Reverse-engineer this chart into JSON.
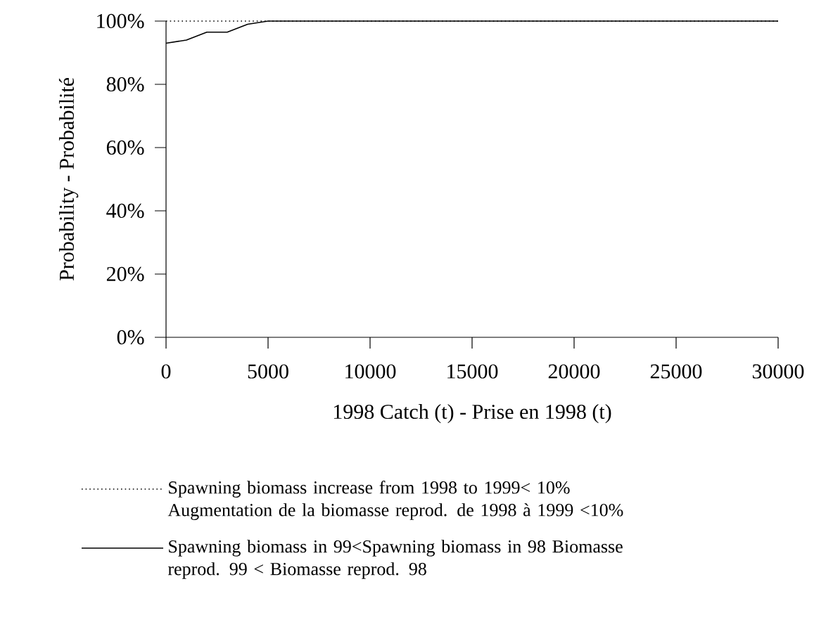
{
  "chart_data": {
    "type": "line",
    "xlabel": "1998 Catch (t) - Prise en 1998 (t)",
    "ylabel": "Probability - Probabilité",
    "xlim": [
      0,
      30000
    ],
    "xticks": [
      0,
      5000,
      10000,
      15000,
      20000,
      25000,
      30000
    ],
    "ylim": [
      0,
      100
    ],
    "yticks": [
      {
        "value": 0,
        "label": "0%"
      },
      {
        "value": 20,
        "label": "20%"
      },
      {
        "value": 40,
        "label": "40%"
      },
      {
        "value": 60,
        "label": "60%"
      },
      {
        "value": 80,
        "label": "80%"
      },
      {
        "value": 100,
        "label": "100%"
      }
    ],
    "legend": "bottom",
    "marker": "none",
    "series": [
      {
        "name": "Spawning biomass increase from 1998 to 1999< 10% Augmentation de la biomasse reprod. de 1998 à 1999 <10%",
        "color": "#000000",
        "line_style": "dotted",
        "x": [
          0,
          30000
        ],
        "values": [
          100,
          100
        ]
      },
      {
        "name": "Spawning biomass in 99<Spawning biomass in 98 Biomasse reprod. 99 < Biomasse reprod. 98",
        "color": "#000000",
        "line_style": "solid",
        "x": [
          0,
          1000,
          2000,
          3000,
          4000,
          5000,
          30000
        ],
        "values": [
          93,
          94,
          96.5,
          96.5,
          99,
          100,
          100
        ]
      }
    ]
  }
}
